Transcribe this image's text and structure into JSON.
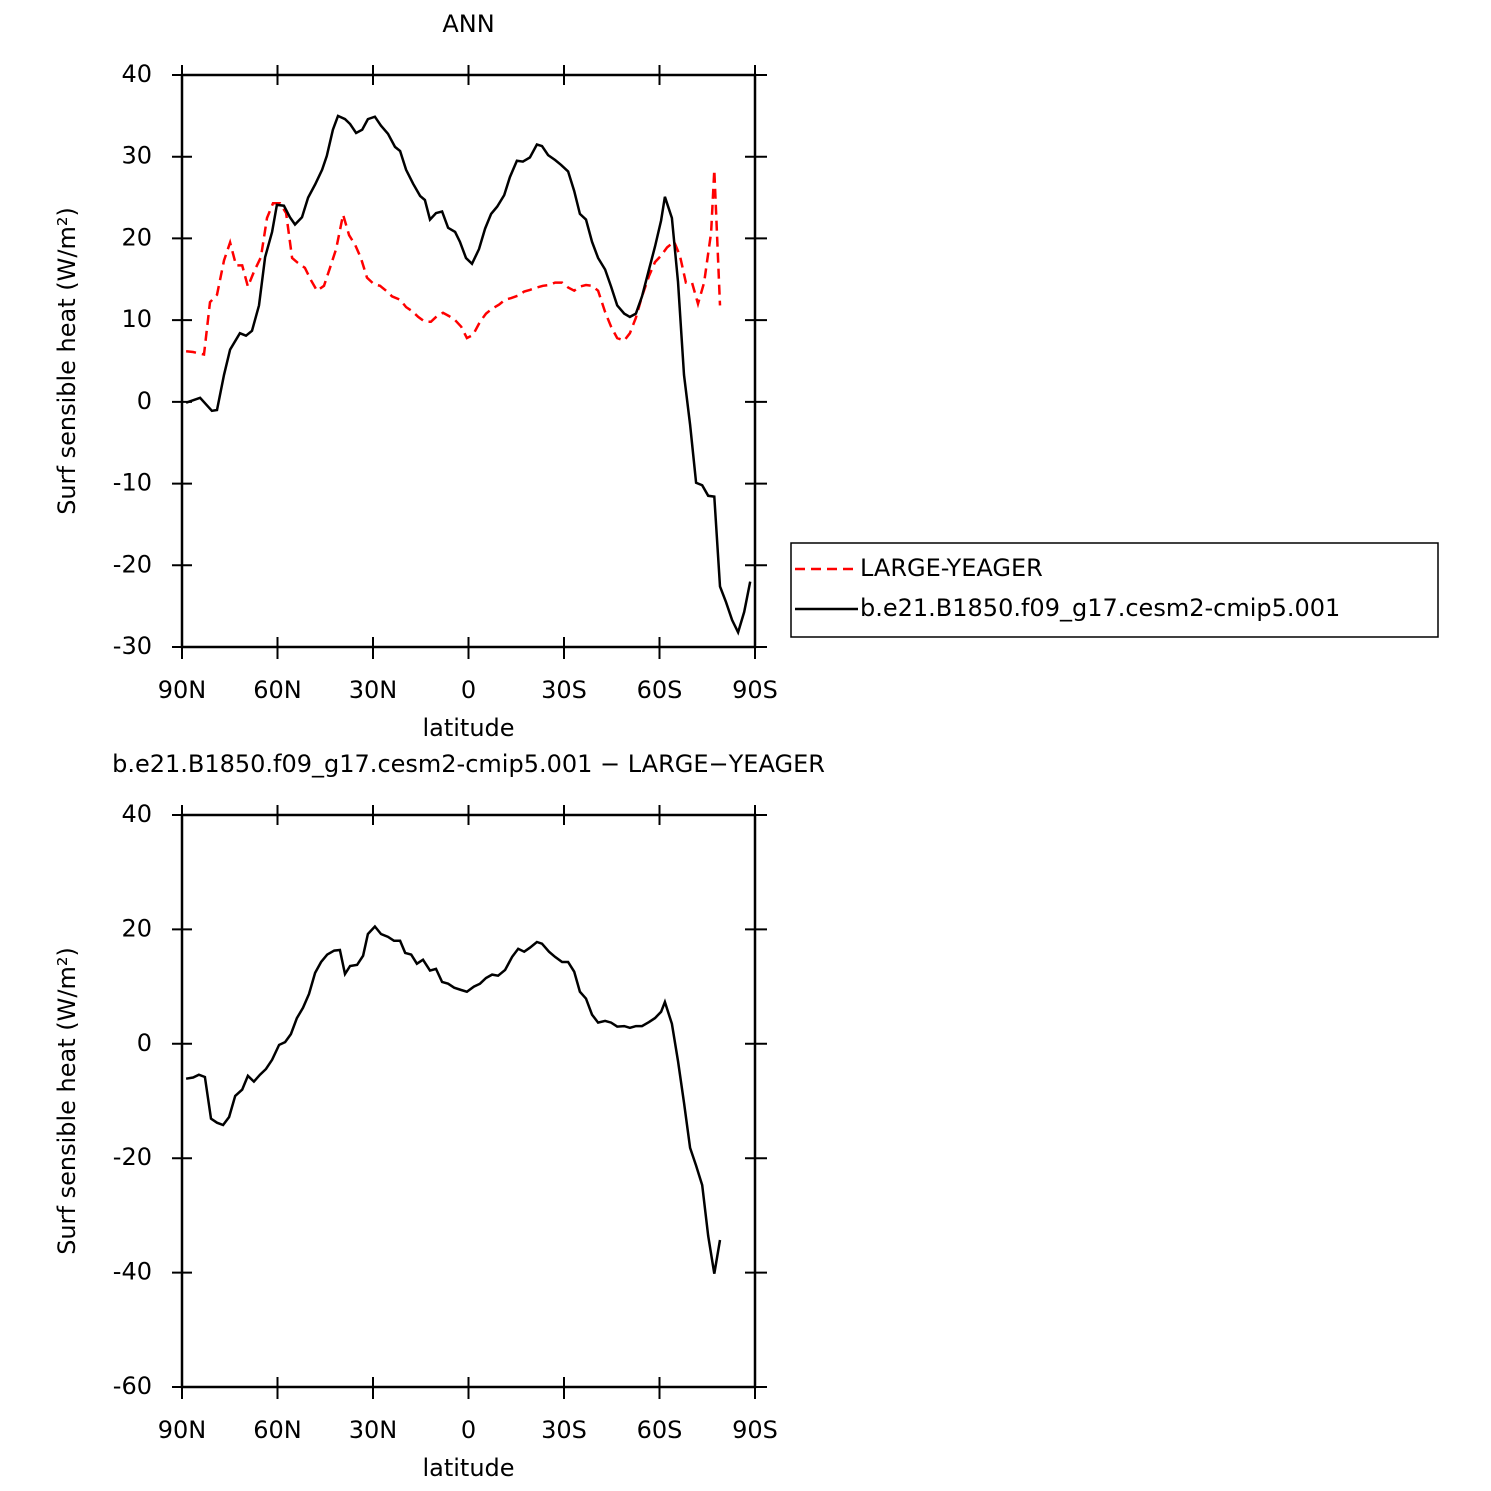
{
  "chart_data": [
    {
      "type": "line",
      "title": "ANN",
      "xlabel": "latitude",
      "ylabel": "Surf sensible heat (W/m²)",
      "xlim": [
        90,
        -90
      ],
      "xticks": [
        {
          "value": 90,
          "label": "90N"
        },
        {
          "value": 60,
          "label": "60N"
        },
        {
          "value": 30,
          "label": "30N"
        },
        0,
        {
          "value": -30,
          "label": "30S"
        },
        {
          "value": -60,
          "label": "60S"
        },
        {
          "value": -90,
          "label": "90S"
        }
      ],
      "ylim": [
        -30,
        40
      ],
      "yticks": [
        -30,
        -20,
        -10,
        0,
        10,
        20,
        30,
        40
      ],
      "legend": "outside-right",
      "series": [
        {
          "name": "LARGE-YEAGER",
          "color": "#ff0000",
          "linestyle": "dashed",
          "x": [
            88.7,
            86.5,
            83.1,
            81.2,
            79,
            76.8,
            74.9,
            73,
            71.1,
            69.3,
            67.4,
            65.2,
            63.3,
            61.4,
            59.2,
            57.3,
            55.4,
            53.6,
            51.4,
            49.5,
            47.6,
            45.4,
            43.5,
            41.6,
            39.4,
            37.5,
            35.6,
            33.8,
            31.9,
            29.7,
            27.8,
            25.9,
            24,
            21.5,
            19.6,
            17.7,
            15.8,
            13.7,
            11.8,
            9.9,
            8,
            6.1,
            4.2,
            2.3,
            0.5,
            -1.4,
            -3.6,
            -5.5,
            -7.4,
            -9.6,
            -11.5,
            -13.4,
            -15.6,
            -17.5,
            -19.3,
            -21.5,
            -23.4,
            -25.3,
            -27.2,
            -29.4,
            -31.3,
            -33.2,
            -35,
            -36.9,
            -38.8,
            -40.7,
            -42.9,
            -44.8,
            -46.7,
            -48.9,
            -50.7,
            -52.6,
            -54.5,
            -56.7,
            -58.6,
            -60.5,
            -62.4,
            -64.6,
            -66.4,
            -68.3,
            -70.2,
            -72.1,
            -74,
            -76.2,
            -77.2,
            -79
          ],
          "values": [
            6.2,
            6.1,
            5.8,
            12.2,
            13.1,
            17.3,
            19.5,
            16.7,
            16.7,
            14.1,
            15.9,
            17.7,
            22.5,
            24.3,
            24.3,
            23.1,
            17.6,
            17,
            16.4,
            14.9,
            13.6,
            14.2,
            16.4,
            18.7,
            22.9,
            20.4,
            19.2,
            17.6,
            15.2,
            14.4,
            14.2,
            13.6,
            12.9,
            12.5,
            11.6,
            11.1,
            10.4,
            9.8,
            9.8,
            10.5,
            10.9,
            10.5,
            10,
            9.2,
            7.8,
            8.2,
            9.8,
            10.8,
            11.4,
            11.9,
            12.5,
            12.7,
            13,
            13.5,
            13.7,
            14,
            14.2,
            14.3,
            14.6,
            14.6,
            14,
            13.6,
            14.1,
            14.3,
            14.2,
            13.6,
            11,
            9.2,
            7.8,
            7.5,
            8.4,
            10.3,
            12.9,
            15.4,
            17.1,
            17.9,
            18.9,
            19.6,
            17.9,
            14.6,
            14.6,
            12,
            14.6,
            20.7,
            28.4,
            11.8
          ]
        },
        {
          "name": "b.e21.B1850.f09_g17.cesm2-cmip5.001",
          "color": "#000000",
          "linestyle": "solid",
          "x": [
            88.7,
            84.3,
            80.6,
            79,
            76.8,
            74.9,
            71.8,
            69.9,
            68,
            65.8,
            63.9,
            61.7,
            60.2,
            58,
            56.1,
            54.5,
            52.3,
            50.4,
            48.2,
            46,
            44.5,
            42.6,
            41,
            38.8,
            37.2,
            35.3,
            33.4,
            31.6,
            29.4,
            27.5,
            25.3,
            23.1,
            21.5,
            19.6,
            17.4,
            15.2,
            13.7,
            12.1,
            10.2,
            8.3,
            6.4,
            4.2,
            2.7,
            0.8,
            -1.1,
            -3.3,
            -5.2,
            -7.1,
            -9,
            -11.2,
            -13,
            -15.2,
            -17.1,
            -19.3,
            -21.5,
            -23.1,
            -25,
            -27.2,
            -29.1,
            -31.3,
            -33.2,
            -35,
            -36.9,
            -38.8,
            -40.7,
            -42.9,
            -44.8,
            -46.7,
            -48.9,
            -50.7,
            -52.6,
            -54.5,
            -56.7,
            -58.6,
            -60.5,
            -61.7,
            -63.9,
            -65.8,
            -67.7,
            -69.6,
            -71.5,
            -73.4,
            -75.3,
            -77.2,
            -79,
            -80.9,
            -82.8,
            -84.7,
            -86.6,
            -88.5
          ],
          "values": [
            -0.1,
            0.5,
            -1.1,
            -1,
            3.3,
            6.4,
            8.4,
            8.1,
            8.7,
            11.8,
            17.7,
            20.8,
            24.1,
            24,
            22.6,
            21.7,
            22.6,
            25,
            26.6,
            28.4,
            30.1,
            33.3,
            35,
            34.6,
            34,
            32.9,
            33.3,
            34.6,
            34.9,
            33.8,
            32.8,
            31.2,
            30.7,
            28.4,
            26.7,
            25.2,
            24.7,
            22.3,
            23.1,
            23.3,
            21.3,
            20.8,
            19.6,
            17.6,
            16.9,
            18.7,
            21.2,
            23,
            23.9,
            25.3,
            27.5,
            29.5,
            29.4,
            29.9,
            31.5,
            31.3,
            30.2,
            29.6,
            29,
            28.2,
            25.8,
            23,
            22.3,
            19.6,
            17.6,
            16.2,
            14.1,
            11.8,
            10.8,
            10.4,
            10.8,
            12.9,
            16.2,
            19,
            22.2,
            25.1,
            22.5,
            14.7,
            3.3,
            -2.8,
            -9.9,
            -10.2,
            -11.5,
            -11.6,
            -22.6,
            -24.5,
            -26.7,
            -28.2,
            -25.7,
            -22
          ]
        }
      ]
    },
    {
      "type": "line",
      "title": "b.e21.B1850.f09_g17.cesm2-cmip5.001 − LARGE−YEAGER",
      "xlabel": "latitude",
      "ylabel": "Surf sensible heat (W/m²)",
      "xlim": [
        90,
        -90
      ],
      "xticks": [
        {
          "value": 90,
          "label": "90N"
        },
        {
          "value": 60,
          "label": "60N"
        },
        {
          "value": 30,
          "label": "30N"
        },
        0,
        {
          "value": -30,
          "label": "30S"
        },
        {
          "value": -60,
          "label": "60S"
        },
        {
          "value": -90,
          "label": "90S"
        }
      ],
      "ylim": [
        -60,
        40
      ],
      "yticks": [
        -60,
        -40,
        -20,
        0,
        20,
        40
      ],
      "color": "#000000",
      "x": [
        88.7,
        86.5,
        84.7,
        82.8,
        80.9,
        79,
        77.1,
        75.2,
        73.3,
        71.1,
        69.3,
        67.4,
        65.5,
        63.6,
        61.7,
        59.5,
        57.6,
        55.8,
        53.9,
        52,
        50.1,
        48.2,
        46.3,
        44.4,
        42.2,
        40.4,
        38.8,
        37.2,
        35,
        33.1,
        31.6,
        29.4,
        27.5,
        25.3,
        23.4,
        21.5,
        19.9,
        18,
        16.2,
        14.3,
        12.1,
        10.2,
        8.3,
        6.4,
        4.5,
        2.3,
        0.5,
        -1.7,
        -3.6,
        -5.5,
        -7.4,
        -9.3,
        -11.5,
        -13.7,
        -15.6,
        -17.5,
        -19.3,
        -21.5,
        -23.1,
        -25.3,
        -27.2,
        -29.4,
        -31.3,
        -33.2,
        -35,
        -36.9,
        -38.8,
        -40.7,
        -42.9,
        -44.8,
        -46.7,
        -48.9,
        -50.7,
        -52.6,
        -54.5,
        -56.7,
        -58.6,
        -60.5,
        -61.7,
        -63.9,
        -65.8,
        -67.7,
        -69.6,
        -71.5,
        -73.4,
        -75.3,
        -77.2,
        -79
      ],
      "values": [
        -6.1,
        -5.9,
        -5.4,
        -5.8,
        -13.1,
        -13.8,
        -14.2,
        -12.8,
        -9.1,
        -8,
        -5.6,
        -6.6,
        -5.4,
        -4.4,
        -2.8,
        -0.2,
        0.3,
        1.7,
        4.5,
        6.3,
        8.7,
        12.4,
        14.3,
        15.6,
        16.3,
        16.4,
        12.2,
        13.6,
        13.8,
        15.4,
        19.2,
        20.5,
        19.2,
        18.7,
        18,
        18,
        15.9,
        15.6,
        14,
        14.7,
        12.8,
        13.1,
        10.8,
        10.5,
        9.8,
        9.4,
        9.1,
        10,
        10.5,
        11.5,
        12.1,
        11.9,
        12.9,
        15.2,
        16.6,
        16.1,
        16.8,
        17.8,
        17.5,
        16.1,
        15.2,
        14.3,
        14.3,
        12.6,
        9.1,
        7.9,
        5.1,
        3.7,
        4,
        3.7,
        3,
        3.1,
        2.8,
        3.1,
        3.1,
        3.8,
        4.5,
        5.6,
        7.3,
        3.5,
        -3,
        -10.3,
        -18.2,
        -21.3,
        -24.7,
        -33.6,
        -40.2,
        -34.3
      ]
    }
  ]
}
